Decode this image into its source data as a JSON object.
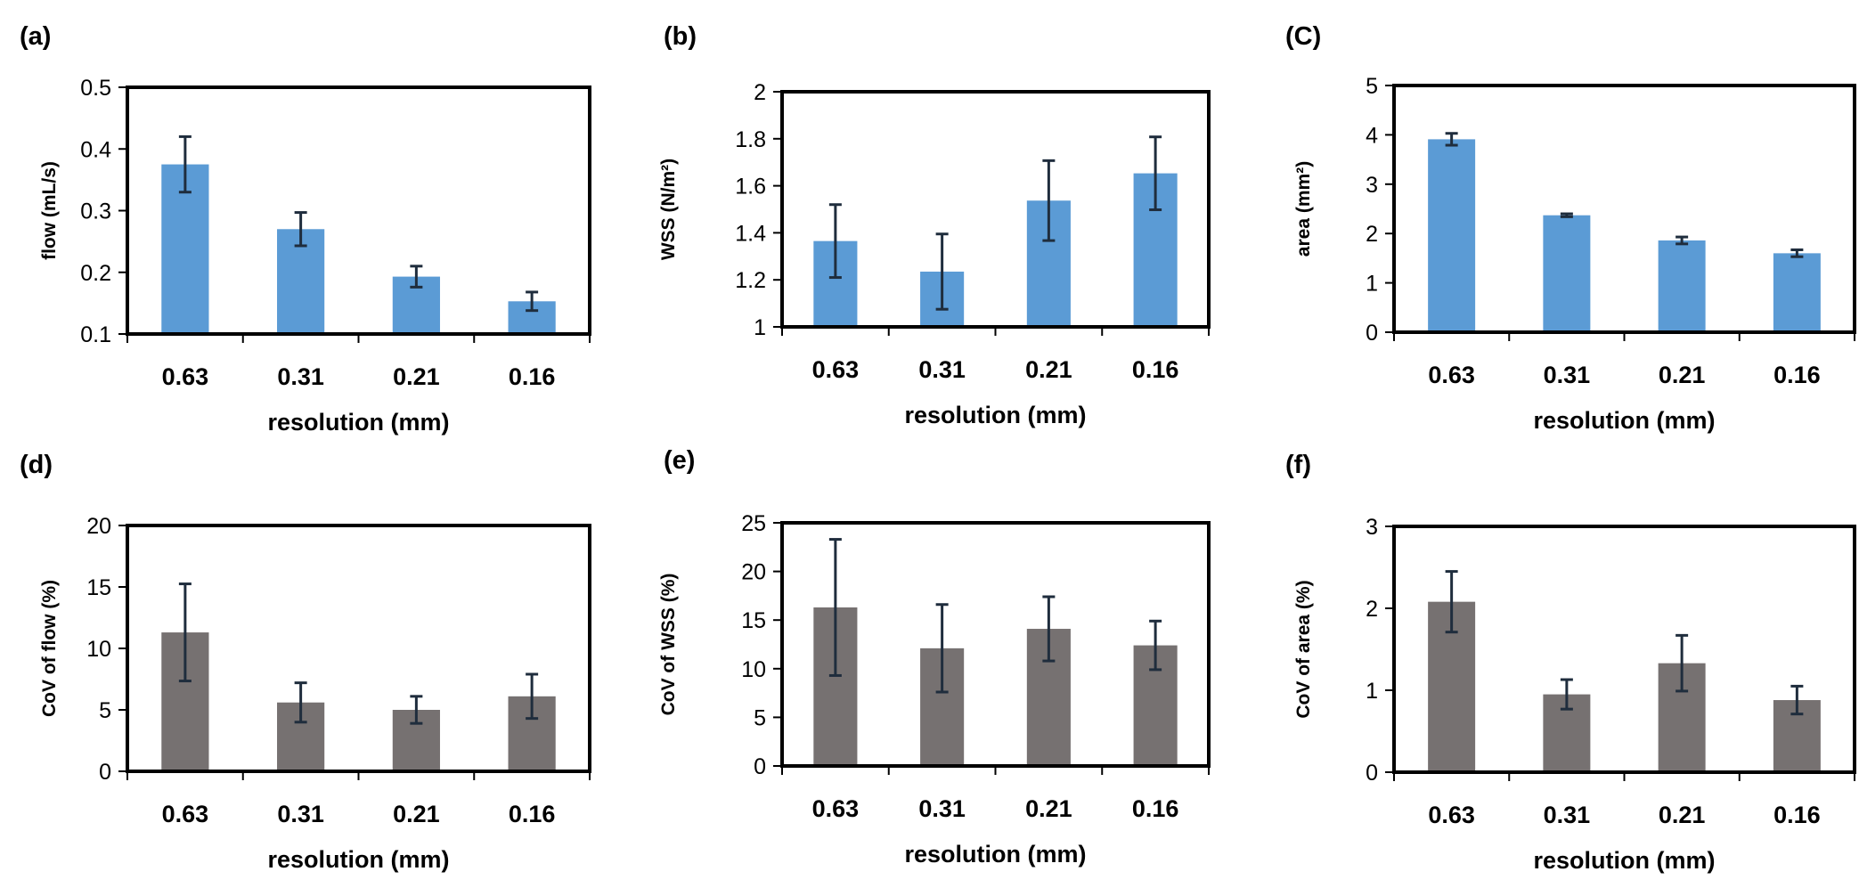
{
  "colors": {
    "blue": "#5b9bd5",
    "gray": "#767171",
    "errorbar": "#1f2d3d",
    "axis": "#000000"
  },
  "chart_data": [
    {
      "panel": "(a)",
      "type": "bar",
      "categories": [
        "0.63",
        "0.31",
        "0.21",
        "0.16"
      ],
      "values": [
        0.375,
        0.27,
        0.193,
        0.153
      ],
      "errors": [
        0.045,
        0.027,
        0.017,
        0.015
      ],
      "yticks": [
        "0.1",
        "0.2",
        "0.3",
        "0.4",
        "0.5"
      ],
      "ylim": [
        0.1,
        0.5
      ],
      "ylabel": "flow (mL/s)",
      "xlabel": "resolution (mm)",
      "color": "blue"
    },
    {
      "panel": "(b)",
      "type": "bar",
      "categories": [
        "0.63",
        "0.31",
        "0.21",
        "0.16"
      ],
      "values": [
        1.365,
        1.235,
        1.537,
        1.653
      ],
      "errors": [
        0.155,
        0.16,
        0.17,
        0.155
      ],
      "yticks": [
        "1",
        "1.2",
        "1.4",
        "1.6",
        "1.8",
        "2"
      ],
      "ylim": [
        1,
        2
      ],
      "ylabel": "WSS (N/m²)",
      "xlabel": "resolution (mm)",
      "color": "blue"
    },
    {
      "panel": "(C)",
      "type": "bar",
      "categories": [
        "0.63",
        "0.31",
        "0.21",
        "0.16"
      ],
      "values": [
        3.91,
        2.37,
        1.86,
        1.6
      ],
      "errors": [
        0.12,
        0.03,
        0.07,
        0.07
      ],
      "yticks": [
        "0",
        "1",
        "2",
        "3",
        "4",
        "5"
      ],
      "ylim": [
        0,
        5
      ],
      "ylabel": "area (mm²)",
      "xlabel": "resolution (mm)",
      "color": "blue"
    },
    {
      "panel": "(d)",
      "type": "bar",
      "categories": [
        "0.63",
        "0.31",
        "0.21",
        "0.16"
      ],
      "values": [
        11.3,
        5.6,
        5.0,
        6.1
      ],
      "errors": [
        3.95,
        1.6,
        1.1,
        1.8
      ],
      "yticks": [
        "0",
        "5",
        "10",
        "15",
        "20"
      ],
      "ylim": [
        0,
        20
      ],
      "ylabel": "CoV of flow (%)",
      "xlabel": "resolution (mm)",
      "color": "gray"
    },
    {
      "panel": "(e)",
      "type": "bar",
      "categories": [
        "0.63",
        "0.31",
        "0.21",
        "0.16"
      ],
      "values": [
        16.3,
        12.1,
        14.1,
        12.4
      ],
      "errors": [
        7.0,
        4.5,
        3.3,
        2.5
      ],
      "yticks": [
        "0",
        "5",
        "10",
        "15",
        "20",
        "25"
      ],
      "ylim": [
        0,
        25
      ],
      "ylabel": "CoV of WSS (%)",
      "xlabel": "resolution (mm)",
      "color": "gray"
    },
    {
      "panel": "(f)",
      "type": "bar",
      "categories": [
        "0.63",
        "0.31",
        "0.21",
        "0.16"
      ],
      "values": [
        2.08,
        0.95,
        1.33,
        0.88
      ],
      "errors": [
        0.37,
        0.18,
        0.34,
        0.17
      ],
      "yticks": [
        "0",
        "1",
        "2",
        "3"
      ],
      "ylim": [
        0,
        3
      ],
      "ylabel": "CoV of area (%)",
      "xlabel": "resolution (mm)",
      "color": "gray"
    }
  ]
}
